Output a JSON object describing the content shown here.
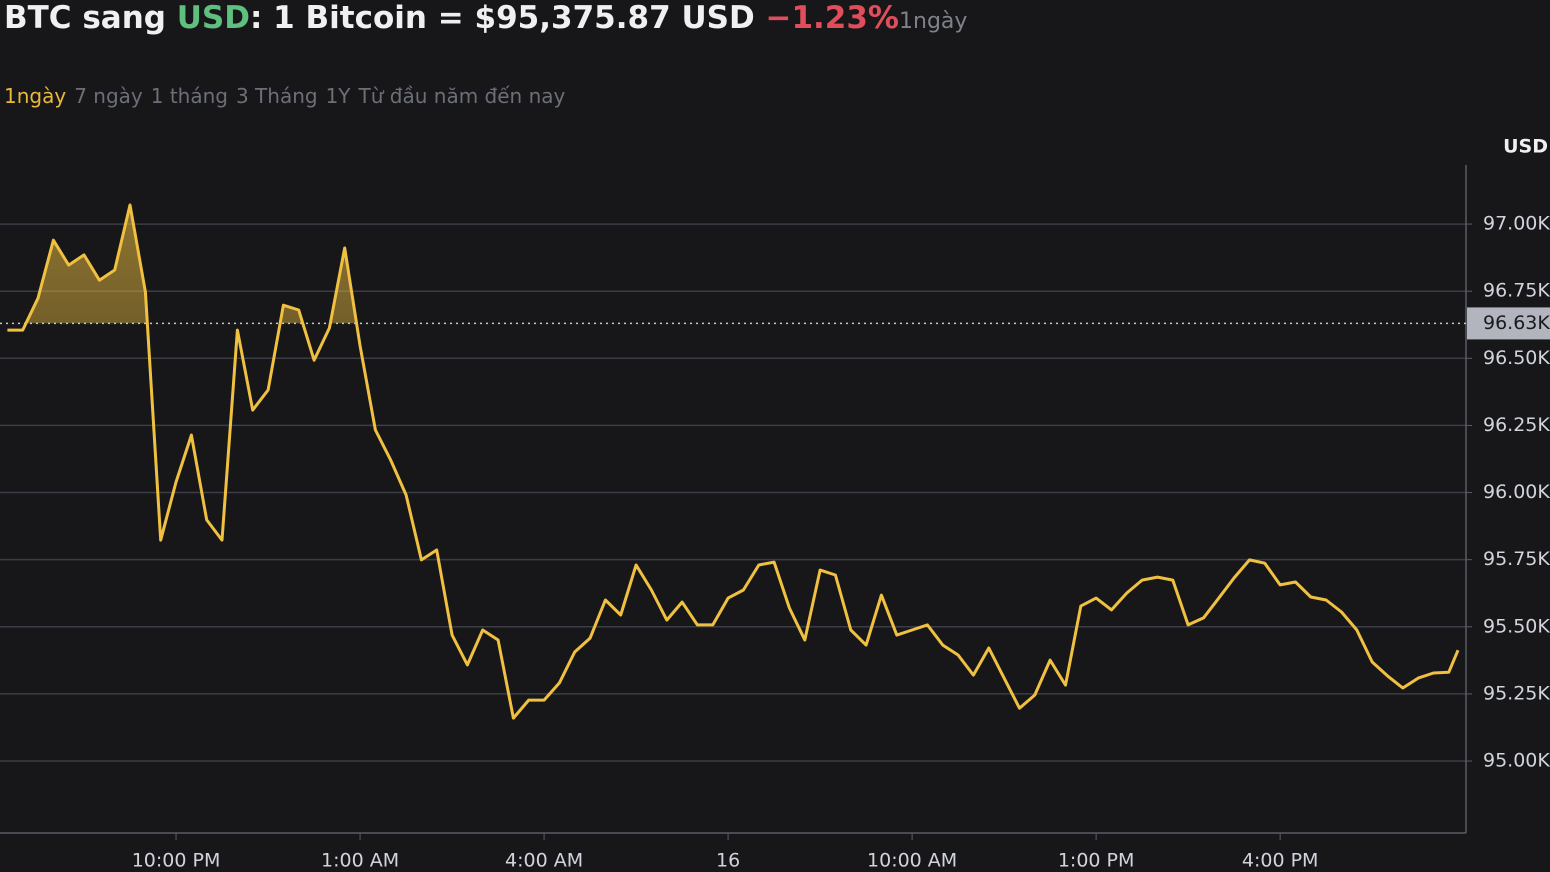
{
  "header": {
    "parts": [
      "BTC sang ",
      "USD",
      ": 1 Bitcoin = $95,375.87 USD ",
      "−1.23%",
      "1ngày"
    ]
  },
  "tabs": [
    "1ngày",
    "7 ngày",
    "1 tháng",
    "3 Tháng",
    "1Y",
    "Từ đầu năm đến nay"
  ],
  "chart_data": {
    "type": "line",
    "y_axis_label": "USD",
    "color": "#f0c040",
    "grid": true,
    "x": [
      19.25,
      19.5,
      19.75,
      20,
      20.25,
      20.5,
      20.75,
      21,
      21.25,
      21.5,
      21.75,
      22,
      22.25,
      22.5,
      22.75,
      23,
      23.25,
      23.5,
      23.75,
      24,
      24.25,
      24.5,
      24.75,
      25,
      25.25,
      25.5,
      25.75,
      26,
      26.25,
      26.5,
      26.75,
      27,
      27.25,
      27.5,
      27.75,
      28,
      28.25,
      28.5,
      28.75,
      29,
      29.25,
      29.5,
      29.75,
      30,
      30.25,
      30.5,
      30.75,
      31,
      31.25,
      31.5,
      31.75,
      32,
      32.25,
      32.5,
      32.75,
      33,
      33.25,
      33.5,
      33.75,
      34,
      34.25,
      34.5,
      34.75,
      35,
      35.25,
      35.5,
      35.75,
      36,
      36.25,
      36.5,
      36.75,
      37,
      37.25,
      37.5,
      37.75,
      38,
      38.25,
      38.5,
      38.75,
      39,
      39.25,
      39.5,
      39.75,
      40,
      40.25,
      40.5,
      40.75,
      41,
      41.25,
      41.5,
      41.75,
      42,
      42.25,
      42.5,
      42.75,
      42.9
    ],
    "values": [
      96605,
      96605,
      96724,
      96940,
      96847,
      96885,
      96791,
      96829,
      97071,
      96747,
      95823,
      96039,
      96214,
      95898,
      95823,
      96605,
      96307,
      96382,
      96698,
      96680,
      96493,
      96613,
      96911,
      96546,
      96233,
      96121,
      95991,
      95749,
      95786,
      95469,
      95358,
      95488,
      95451,
      95160,
      95227,
      95227,
      95291,
      95406,
      95458,
      95600,
      95544,
      95730,
      95637,
      95525,
      95592,
      95507,
      95507,
      95607,
      95637,
      95730,
      95741,
      95570,
      95451,
      95711,
      95693,
      95488,
      95432,
      95618,
      95469,
      95488,
      95507,
      95432,
      95395,
      95320,
      95421,
      95309,
      95197,
      95246,
      95376,
      95283,
      95577,
      95607,
      95563,
      95626,
      95674,
      95685,
      95674,
      95507,
      95533,
      95607,
      95682,
      95749,
      95737,
      95656,
      95667,
      95611,
      95600,
      95555,
      95488,
      95369,
      95317,
      95272,
      95309,
      95328,
      95331,
      95413
    ],
    "xlim": [
      19.13,
      43.03
    ],
    "xticks": [
      {
        "value": 22,
        "label": "10:00 PM"
      },
      {
        "value": 25,
        "label": "1:00 AM"
      },
      {
        "value": 28,
        "label": "4:00 AM"
      },
      {
        "value": 31,
        "label": "16"
      },
      {
        "value": 34,
        "label": "10:00 AM"
      },
      {
        "value": 37,
        "label": "1:00 PM"
      },
      {
        "value": 40,
        "label": "4:00 PM"
      }
    ],
    "ylim": [
      94732,
      97220
    ],
    "yticks": [
      {
        "value": 95000,
        "label": "95.00K"
      },
      {
        "value": 95250,
        "label": "95.25K"
      },
      {
        "value": 95500,
        "label": "95.50K"
      },
      {
        "value": 95750,
        "label": "95.75K"
      },
      {
        "value": 96000,
        "label": "96.00K"
      },
      {
        "value": 96250,
        "label": "96.25K"
      },
      {
        "value": 96500,
        "label": "96.50K"
      },
      {
        "value": 96750,
        "label": "96.75K"
      },
      {
        "value": 97000,
        "label": "97.00K"
      }
    ],
    "reference_line": {
      "value": 96630,
      "label": "96.63K"
    }
  }
}
